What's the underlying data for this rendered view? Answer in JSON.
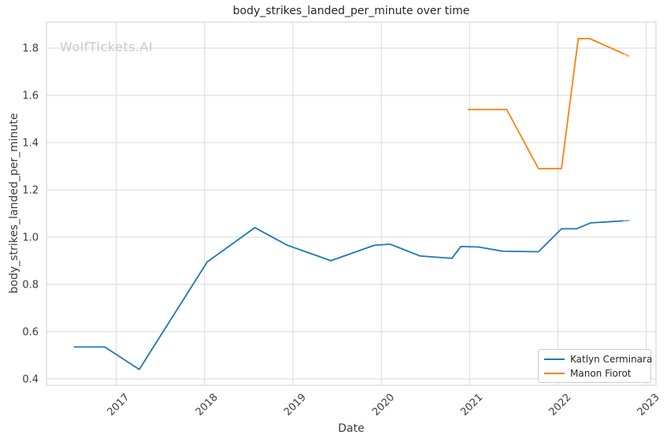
{
  "watermark": "WolfTickets.AI",
  "chart_data": {
    "type": "line",
    "title": "body_strikes_landed_per_minute over time",
    "xlabel": "Date",
    "ylabel": "body_strikes_landed_per_minute",
    "xlim": [
      2016.21,
      2023.11
    ],
    "ylim": [
      0.373,
      1.91
    ],
    "grid": true,
    "legend_position": "lower right",
    "x_ticks": {
      "values": [
        2017,
        2018,
        2019,
        2020,
        2021,
        2022,
        2023
      ],
      "labels": [
        "2017",
        "2018",
        "2019",
        "2020",
        "2021",
        "2022",
        "2023"
      ]
    },
    "y_ticks": {
      "values": [
        0.4,
        0.6,
        0.8,
        1.0,
        1.2,
        1.4,
        1.6,
        1.8
      ],
      "labels": [
        "0.4",
        "0.6",
        "0.8",
        "1.0",
        "1.2",
        "1.4",
        "1.6",
        "1.8"
      ]
    },
    "series": [
      {
        "name": "Katlyn Cerminara",
        "color": "#1f77b4",
        "tip_color": "#85b9dc",
        "points": [
          [
            2016.52,
            0.535
          ],
          [
            2016.87,
            0.535
          ],
          [
            2017.26,
            0.44
          ],
          [
            2018.03,
            0.895
          ],
          [
            2018.57,
            1.04
          ],
          [
            2018.94,
            0.965
          ],
          [
            2019.43,
            0.9
          ],
          [
            2019.92,
            0.965
          ],
          [
            2020.1,
            0.97
          ],
          [
            2020.44,
            0.92
          ],
          [
            2020.8,
            0.91
          ],
          [
            2020.9,
            0.96
          ],
          [
            2021.1,
            0.958
          ],
          [
            2021.38,
            0.94
          ],
          [
            2021.78,
            0.938
          ],
          [
            2022.04,
            1.035
          ],
          [
            2022.21,
            1.035
          ],
          [
            2022.37,
            1.06
          ],
          [
            2022.81,
            1.07
          ]
        ]
      },
      {
        "name": "Manon Fiorot",
        "color": "#ff7f0e",
        "tip_color": "#ffb26e",
        "points": [
          [
            2020.98,
            1.54
          ],
          [
            2021.42,
            1.54
          ],
          [
            2021.78,
            1.29
          ],
          [
            2022.04,
            1.29
          ],
          [
            2022.23,
            1.84
          ],
          [
            2022.36,
            1.84
          ],
          [
            2022.81,
            1.765
          ]
        ]
      }
    ]
  }
}
